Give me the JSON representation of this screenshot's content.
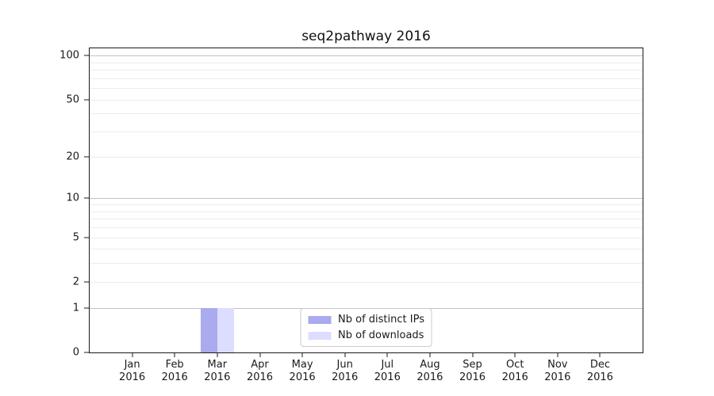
{
  "chart_data": {
    "type": "bar",
    "title": "seq2pathway 2016",
    "x_categories": [
      "Jan",
      "Feb",
      "Mar",
      "Apr",
      "May",
      "Jun",
      "Jul",
      "Aug",
      "Sep",
      "Oct",
      "Nov",
      "Dec"
    ],
    "x_year": "2016",
    "series": [
      {
        "name": "Nb of distinct IPs",
        "color": "#aaaaee",
        "values": [
          0,
          0,
          1,
          0,
          0,
          0,
          0,
          0,
          0,
          0,
          0,
          0
        ]
      },
      {
        "name": "Nb of downloads",
        "color": "#ddddff",
        "values": [
          0,
          0,
          1,
          0,
          0,
          0,
          0,
          0,
          0,
          0,
          0,
          0
        ]
      }
    ],
    "y_axis": {
      "scale": "log1p",
      "max": 112,
      "ticks": [
        100,
        50,
        20,
        10,
        5,
        2,
        1,
        0
      ],
      "major_gridlines": [
        1,
        10,
        100
      ],
      "minor_gridlines": [
        2,
        3,
        4,
        5,
        6,
        7,
        8,
        9,
        20,
        30,
        40,
        50,
        60,
        70,
        80,
        90
      ]
    },
    "legend_position": "lower center",
    "grid": true,
    "colors": {
      "major_grid": "#c2c2c2",
      "minor_grid": "#ececec",
      "spine": "#1a1a1a"
    }
  }
}
